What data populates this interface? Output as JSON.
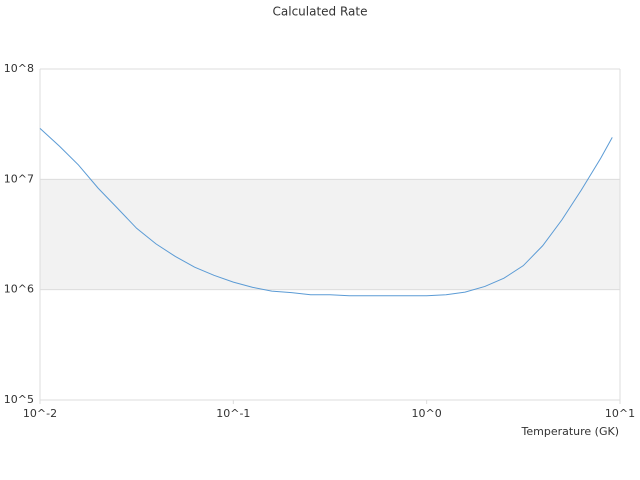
{
  "chart_data": {
    "type": "line",
    "title": "Calculated Rate",
    "x_label": "Temperature (GK)",
    "x": [
      0.01,
      0.0126,
      0.0158,
      0.02,
      0.0251,
      0.0316,
      0.0398,
      0.0501,
      0.0631,
      0.0794,
      0.1,
      0.126,
      0.158,
      0.2,
      0.251,
      0.316,
      0.398,
      0.501,
      0.631,
      0.794,
      1,
      1.26,
      1.58,
      2,
      2.51,
      3.16,
      3.98,
      5.01,
      6.31,
      7.94,
      9.12
    ],
    "series": [
      {
        "color": "#5b9bd5",
        "values": [
          29000000,
          20000000,
          13500000,
          8300000,
          5500000,
          3600000,
          2600000,
          2000000,
          1600000,
          1350000,
          1170000,
          1050000,
          970000,
          940000,
          900000,
          900000,
          880000,
          880000,
          880000,
          880000,
          880000,
          900000,
          950000,
          1070000,
          1270000,
          1650000,
          2500000,
          4300000,
          8000000,
          15500000,
          24000000
        ]
      }
    ],
    "xlim": [
      0.01,
      10
    ],
    "xticks": [
      {
        "value": 0.01,
        "label": "10^-2"
      },
      {
        "value": 0.1,
        "label": "10^-1"
      },
      {
        "value": 1,
        "label": "10^0"
      },
      {
        "value": 10,
        "label": "10^1"
      }
    ],
    "ylim": [
      100000,
      100000000
    ],
    "yticks": [
      {
        "value": 100000,
        "label": "10^5"
      },
      {
        "value": 1000000,
        "label": "10^6"
      },
      {
        "value": 10000000,
        "label": "10^7"
      },
      {
        "value": 100000000,
        "label": "10^8"
      }
    ],
    "xscale": "log",
    "yscale": "log",
    "grid": true
  }
}
